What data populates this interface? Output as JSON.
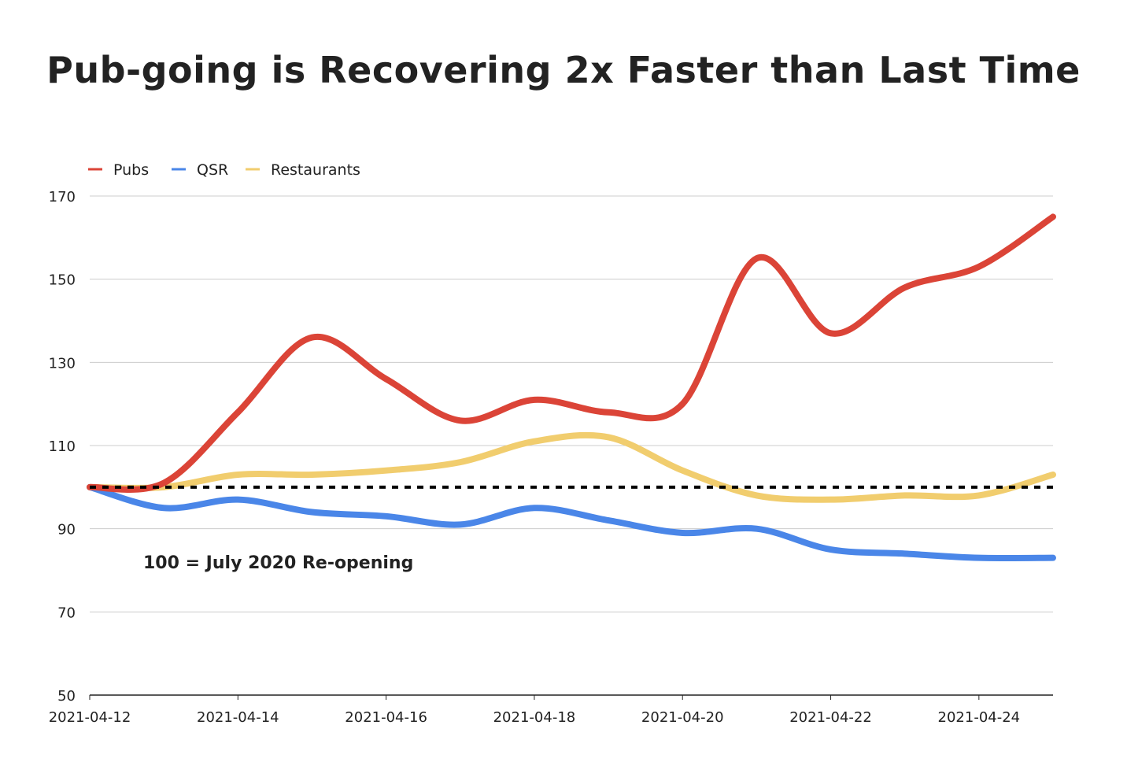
{
  "chart_data": {
    "type": "line",
    "title": "Pub-going is Recovering 2x Faster than Last Time",
    "xlabel": "",
    "ylabel": "",
    "ylim": [
      50,
      170
    ],
    "yticks": [
      "50",
      "70",
      "90",
      "110",
      "130",
      "150",
      "170"
    ],
    "x": [
      "2021-04-12",
      "2021-04-13",
      "2021-04-14",
      "2021-04-15",
      "2021-04-16",
      "2021-04-17",
      "2021-04-18",
      "2021-04-19",
      "2021-04-20",
      "2021-04-21",
      "2021-04-22",
      "2021-04-23",
      "2021-04-24",
      "2021-04-25"
    ],
    "xtick_labels": [
      "2021-04-12",
      "2021-04-14",
      "2021-04-16",
      "2021-04-18",
      "2021-04-20",
      "2021-04-22",
      "2021-04-24"
    ],
    "grid": true,
    "legend_position": "top-left",
    "series": [
      {
        "name": "Pubs",
        "color": "#db4437",
        "values": [
          100,
          101,
          118,
          136,
          126,
          116,
          121,
          118,
          120,
          155,
          137,
          148,
          153,
          165
        ]
      },
      {
        "name": "QSR",
        "color": "#4a86e8",
        "values": [
          100,
          95,
          97,
          94,
          93,
          91,
          95,
          92,
          89,
          90,
          85,
          84,
          83,
          83
        ]
      },
      {
        "name": "Restaurants",
        "color": "#f1cd6e",
        "values": [
          100,
          100,
          103,
          103,
          104,
          106,
          111,
          112,
          104,
          98,
          97,
          98,
          98,
          103
        ]
      }
    ],
    "reference_line": {
      "value": 100,
      "style": "dotted",
      "color": "#000000"
    },
    "annotation": "100 = July 2020 Re-opening"
  }
}
